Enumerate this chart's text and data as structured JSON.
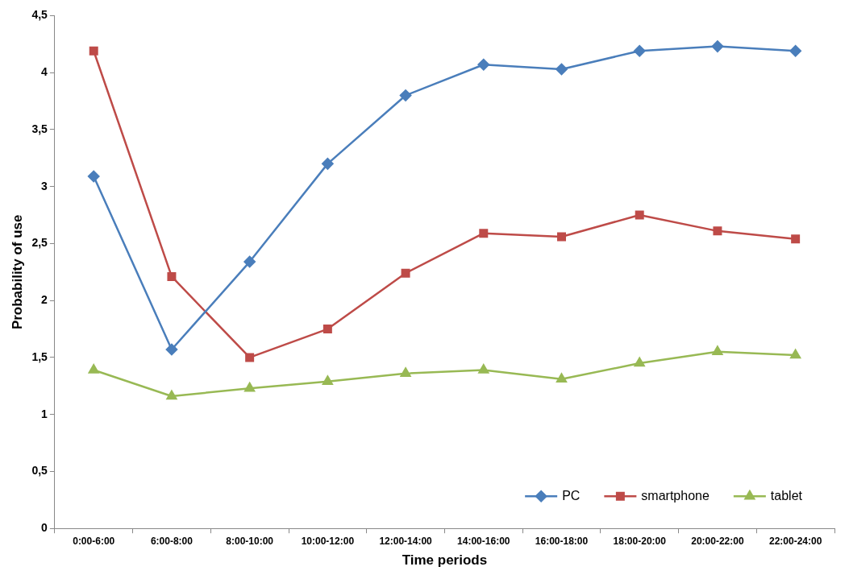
{
  "chart_data": {
    "type": "line",
    "xlabel": "Time periods",
    "ylabel": "Probability of use",
    "categories": [
      "0:00-6:00",
      "6:00-8:00",
      "8:00-10:00",
      "10:00-12:00",
      "12:00-14:00",
      "14:00-16:00",
      "16:00-18:00",
      "18:00-20:00",
      "20:00-22:00",
      "22:00-24:00"
    ],
    "series": [
      {
        "name": "PC",
        "color": "#4a7ebb",
        "marker": "diamond",
        "values": [
          3.09,
          1.57,
          2.34,
          3.2,
          3.8,
          4.07,
          4.03,
          4.19,
          4.23,
          4.19
        ]
      },
      {
        "name": "smartphone",
        "color": "#be4b48",
        "marker": "square",
        "values": [
          4.19,
          2.21,
          1.5,
          1.75,
          2.24,
          2.59,
          2.56,
          2.75,
          2.61,
          2.54
        ]
      },
      {
        "name": "tablet",
        "color": "#98b954",
        "marker": "triangle",
        "values": [
          1.39,
          1.16,
          1.23,
          1.29,
          1.36,
          1.39,
          1.31,
          1.45,
          1.55,
          1.52
        ]
      }
    ],
    "ylim": [
      0,
      4.5
    ],
    "yticks": [
      0,
      {
        "value": 0.5,
        "label": "0,5"
      },
      1,
      {
        "value": 1.5,
        "label": "1,5"
      },
      2,
      {
        "value": 2.5,
        "label": "2,5"
      },
      3,
      {
        "value": 3.5,
        "label": "3,5"
      },
      4,
      {
        "value": 4.5,
        "label": "4,5"
      }
    ],
    "grid": false,
    "legend": "bottom right",
    "line_style": "solid"
  }
}
